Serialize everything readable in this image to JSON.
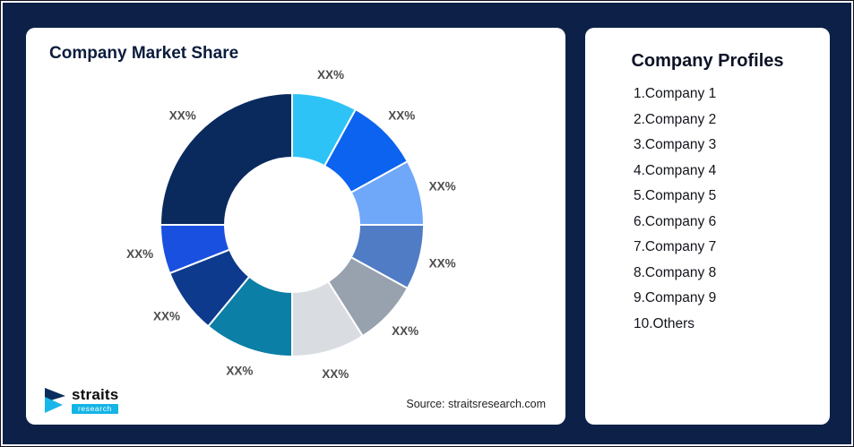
{
  "page": {
    "background": "#0d2148"
  },
  "left_card": {
    "title": "Company Market Share",
    "source": "Source: straitsresearch.com",
    "logo": {
      "brand": "straits",
      "sub": "research"
    }
  },
  "right_card": {
    "title": "Company Profiles",
    "items": [
      "1.Company 1",
      "2.Company 2",
      "3.Company 3",
      "4.Company 4",
      "5.Company 5",
      "6.Company 6",
      "7.Company 7",
      "8.Company 8",
      "9.Company 9",
      "10.Others"
    ]
  },
  "chart_data": {
    "type": "pie",
    "subtype": "donut",
    "title": "Company Market Share",
    "categories": [
      "Company 1",
      "Company 2",
      "Company 3",
      "Company 4",
      "Company 5",
      "Company 6",
      "Company 7",
      "Company 8",
      "Company 9",
      "Others"
    ],
    "values": [
      8,
      9,
      8,
      8,
      8,
      9,
      11,
      8,
      6,
      25
    ],
    "labels": [
      "XX%",
      "XX%",
      "XX%",
      "XX%",
      "XX%",
      "XX%",
      "XX%",
      "XX%",
      "XX%",
      "XX%"
    ],
    "colors": [
      "#2ec3f7",
      "#0b63f0",
      "#6fa8f8",
      "#4f7cc5",
      "#98a2ae",
      "#d9dde2",
      "#0b7fa6",
      "#0d3a8c",
      "#1a50e0",
      "#0a2a5e"
    ],
    "start_angle_deg": 0,
    "direction": "clockwise",
    "inner_radius_ratio": 0.51,
    "legend": "none"
  }
}
